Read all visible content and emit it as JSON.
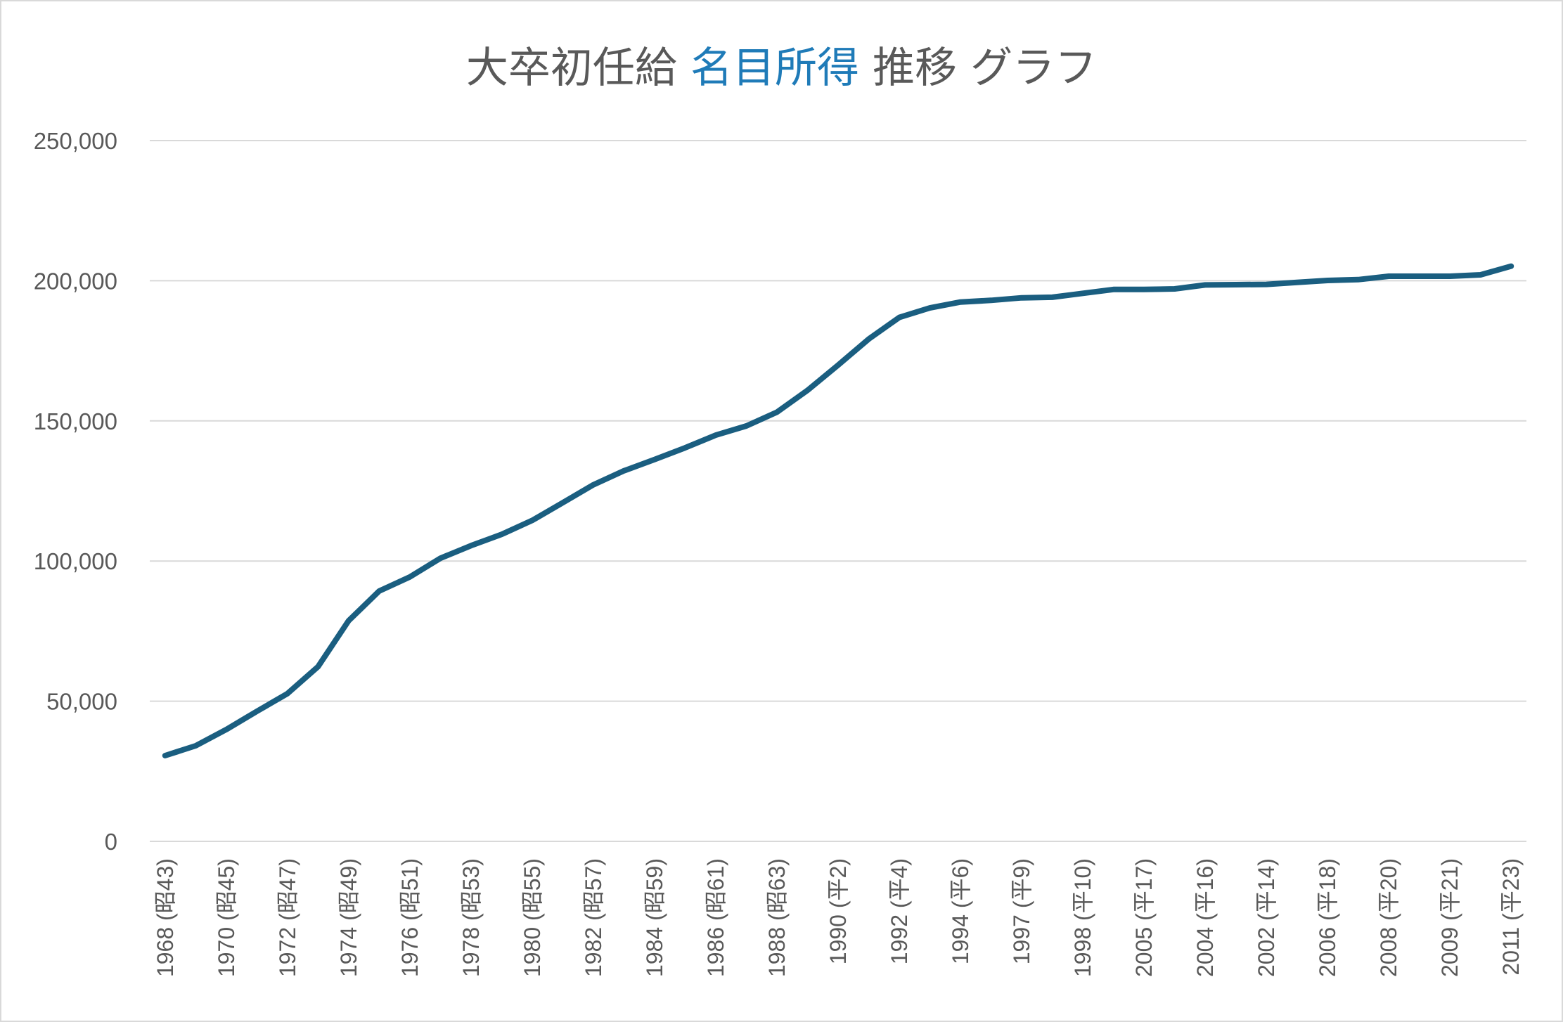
{
  "chart_data": {
    "type": "line",
    "title": {
      "prefix": "大卒初任給",
      "highlight": "名目所得",
      "suffix": "推移 グラフ"
    },
    "ylim": [
      0,
      250000
    ],
    "y_ticks": [
      "0",
      "50,000",
      "100,000",
      "150,000",
      "200,000",
      "250,000"
    ],
    "x_tick_labels": [
      "1968 (昭43)",
      "1970 (昭45)",
      "1972 (昭47)",
      "1974 (昭49)",
      "1976 (昭51)",
      "1978 (昭53)",
      "1980 (昭55)",
      "1982 (昭57)",
      "1984 (昭59)",
      "1986 (昭61)",
      "1988 (昭63)",
      "1990 (平2)",
      "1992 (平4)",
      "1994 (平6)",
      "1997 (平9)",
      "1998 (平10)",
      "2005 (平17)",
      "2004 (平16)",
      "2002 (平14)",
      "2006 (平18)",
      "2008 (平20)",
      "2009 (平21)",
      "2011 (平23)"
    ],
    "grid": true,
    "legend": "none",
    "series": [
      {
        "color": "#1a5e80",
        "values": [
          30600,
          34100,
          39900,
          46400,
          52700,
          62300,
          78700,
          89300,
          94300,
          101000,
          105500,
          109500,
          114500,
          120800,
          127200,
          132200,
          136200,
          140400,
          144900,
          148200,
          153100,
          160900,
          169900,
          179200,
          186900,
          190300,
          192400,
          193000,
          193900,
          194100,
          195500,
          196900,
          196900,
          197100,
          198500,
          198600,
          198700,
          199400,
          200100,
          200400,
          201600,
          201600,
          201600,
          202100,
          205200
        ]
      }
    ]
  }
}
